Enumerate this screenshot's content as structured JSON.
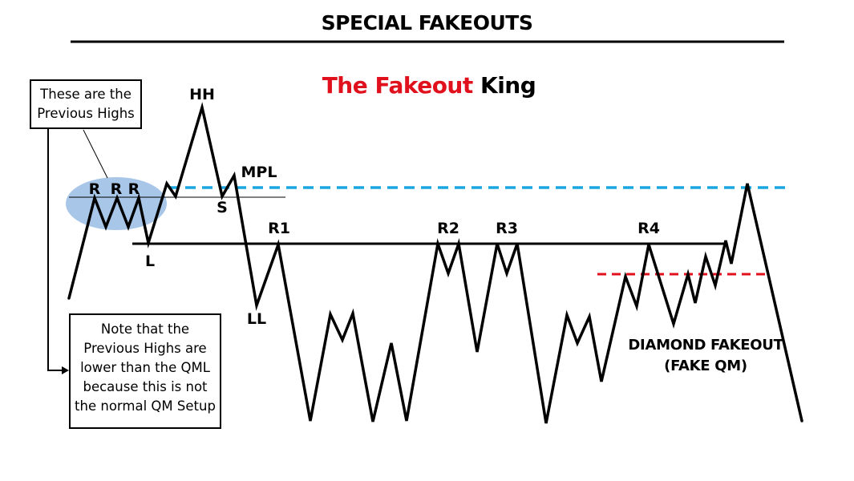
{
  "header": {
    "title": "SPECIAL FAKEOUTS",
    "subtitle_red": "The Fakeout",
    "subtitle_black": " King"
  },
  "callouts": {
    "previous_highs": {
      "line1": "These are the",
      "line2": "Previous Highs"
    },
    "note": {
      "line1": "Note that the",
      "line2": "Previous Highs are",
      "line3": "lower than the QML",
      "line4": "because this is not",
      "line5": "the normal QM Setup"
    }
  },
  "labels": {
    "hh": "HH",
    "mpl": "MPL",
    "s": "S",
    "l": "L",
    "ll": "LL",
    "r_left": "R",
    "r_mid": "R",
    "r_right": "R",
    "r1": "R1",
    "r2": "R2",
    "r3": "R3",
    "r4": "R4"
  },
  "annotation": {
    "line1": "DIAMOND FAKEOUT",
    "line2": "(FAKE QM)"
  },
  "colors": {
    "title_accent": "#e0101c",
    "blue_dashed_level": "#1aa6e0",
    "red_dashed_level": "#e0101c",
    "highlight_ellipse": "#a8c6e8",
    "price_line": "#000000"
  }
}
